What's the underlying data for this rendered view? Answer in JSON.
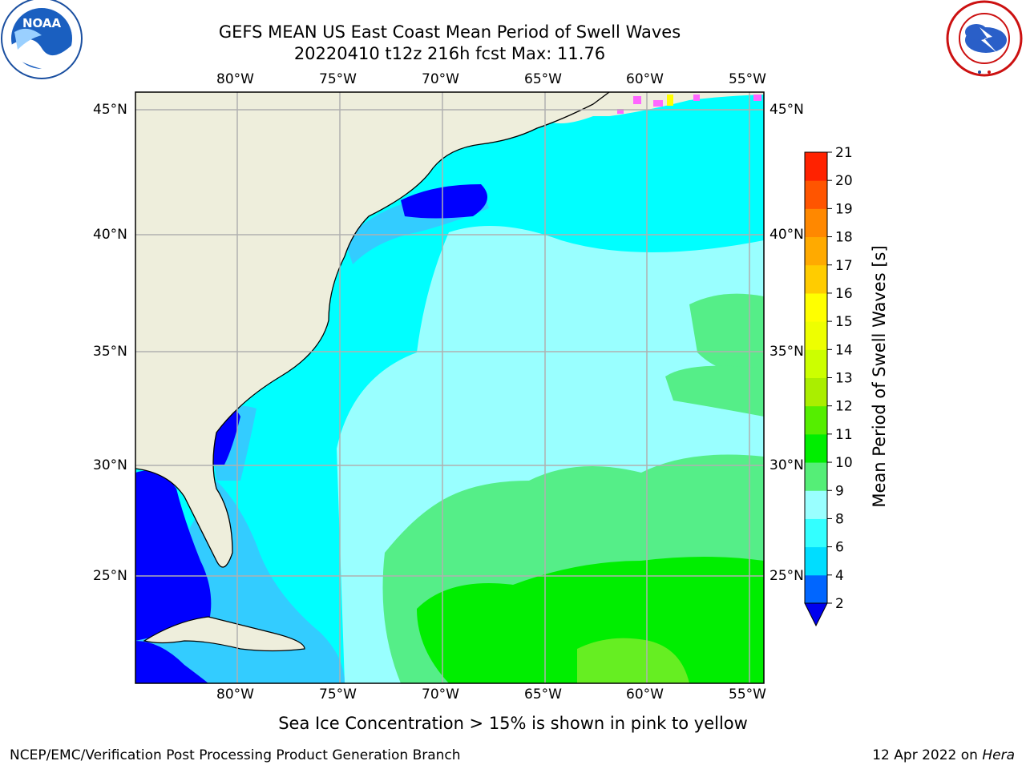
{
  "header": {
    "title_line1": "GEFS MEAN US East Coast Mean Period of Swell Waves",
    "title_line2": "20220410 t12z 216h fcst   Max: 11.76"
  },
  "logos": {
    "left": {
      "icon": "noaa-logo-icon",
      "text": "NOAA",
      "ring_text": "NATIONAL OCEANIC AND ATMOSPHERIC ADMINISTRATION · U.S. DEPARTMENT OF COMMERCE"
    },
    "right": {
      "icon": "nws-logo-icon",
      "ring_text": "NATIONAL WEATHER SERVICE"
    }
  },
  "map": {
    "lon_labels": [
      "80°W",
      "75°W",
      "70°W",
      "65°W",
      "60°W",
      "55°W"
    ],
    "lat_labels": [
      "45°N",
      "40°N",
      "35°N",
      "30°N",
      "25°N"
    ],
    "colors": {
      "land": "#eeeedc",
      "frame": "#000000",
      "grid": "#b0b0b0",
      "bin_2_4": "#0000ff",
      "bin_4_6": "#33ccff",
      "bin_6_8": "#00ffff",
      "bin_8_9": "#99ffff",
      "bin_9_10": "#55ee88",
      "bin_10_11": "#00ee00",
      "bin_11_12": "#66ee22",
      "ice_pink": "#ff66ff",
      "ice_yellow": "#ffff00"
    }
  },
  "colorbar": {
    "label": "Mean Period of Swell Waves [s]",
    "ticks": [
      "2",
      "4",
      "6",
      "8",
      "9",
      "10",
      "11",
      "12",
      "13",
      "14",
      "15",
      "16",
      "17",
      "18",
      "19",
      "20",
      "21"
    ],
    "bins": [
      {
        "from": 2,
        "to": 4,
        "color": "#0066ff"
      },
      {
        "from": 4,
        "to": 6,
        "color": "#00ddff"
      },
      {
        "from": 6,
        "to": 8,
        "color": "#33ffff"
      },
      {
        "from": 8,
        "to": 9,
        "color": "#99ffff"
      },
      {
        "from": 9,
        "to": 10,
        "color": "#55ee77"
      },
      {
        "from": 10,
        "to": 11,
        "color": "#00ee00"
      },
      {
        "from": 11,
        "to": 12,
        "color": "#55ee00"
      },
      {
        "from": 12,
        "to": 13,
        "color": "#aaee00"
      },
      {
        "from": 13,
        "to": 14,
        "color": "#ccff00"
      },
      {
        "from": 14,
        "to": 15,
        "color": "#eeff00"
      },
      {
        "from": 15,
        "to": 16,
        "color": "#ffff00"
      },
      {
        "from": 16,
        "to": 17,
        "color": "#ffcc00"
      },
      {
        "from": 17,
        "to": 18,
        "color": "#ffaa00"
      },
      {
        "from": 18,
        "to": 19,
        "color": "#ff8800"
      },
      {
        "from": 19,
        "to": 20,
        "color": "#ff5500"
      },
      {
        "from": 20,
        "to": 21,
        "color": "#ff2200"
      }
    ],
    "under_color": "#0000ee"
  },
  "footer": {
    "note": "Sea Ice Concentration > 15% is shown in pink to yellow",
    "credit": "NCEP/EMC/Verification Post Processing Product Generation Branch",
    "date": "12 Apr 2022 on ",
    "machine": "Hera"
  }
}
